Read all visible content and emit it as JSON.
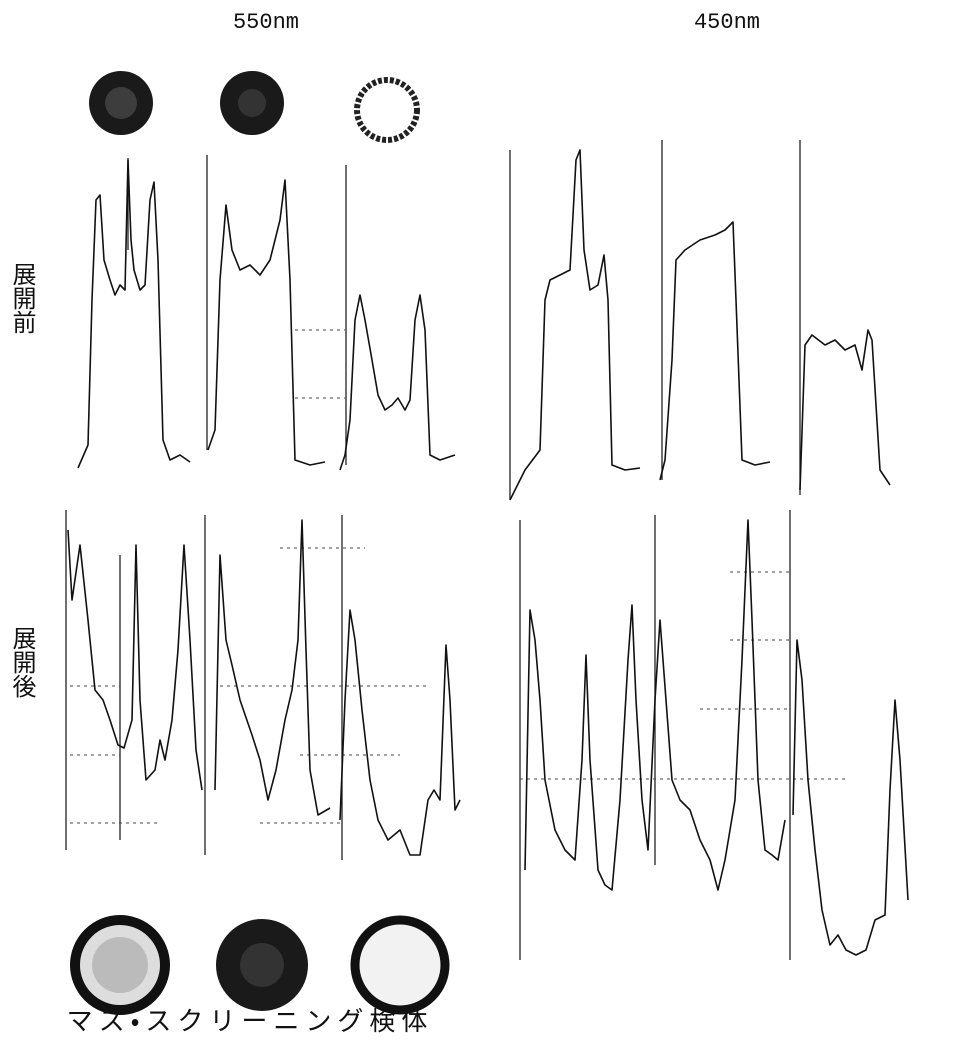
{
  "header": {
    "left": "550nm",
    "right": "450nm"
  },
  "row_labels": [
    "展開前",
    "展開後"
  ],
  "caption": "マス・スクリーニング検体"
}
